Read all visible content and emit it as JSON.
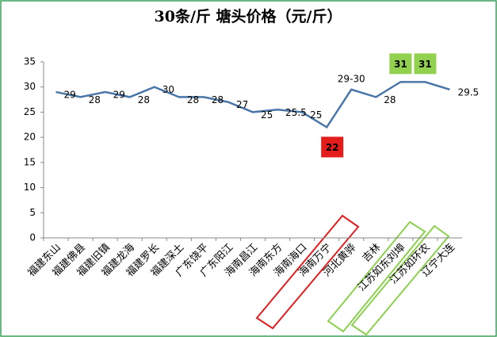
{
  "chart_data": {
    "type": "line",
    "title": "30条/斤     塘头价格（元/斤）",
    "categories": [
      "福建东山",
      "福建佛县",
      "福建旧镇",
      "福建龙海",
      "福建罗长",
      "福建深土",
      "广东饶平",
      "广东阳江",
      "海南昌江",
      "海南东方",
      "海南海口",
      "海南万宁",
      "河北黄骅",
      "吉林",
      "江苏如东刘埠",
      "江苏如环农",
      "辽宁大连"
    ],
    "series": [
      {
        "color": "#4a76a8",
        "values": [
          29,
          28,
          29,
          28,
          30,
          28,
          28,
          27,
          25,
          25.5,
          25,
          22,
          29.5,
          28,
          31,
          31,
          29.5
        ],
        "value_labels": [
          "29",
          "28",
          "29",
          "28",
          "30",
          "28",
          "28",
          "27",
          "25",
          "25.5",
          "25",
          "22",
          "29-30",
          "28",
          "31",
          "31",
          "29.5"
        ]
      }
    ],
    "ylim": [
      0,
      35
    ],
    "yticks": [
      0,
      5,
      10,
      15,
      20,
      25,
      30,
      35
    ],
    "grid": false
  }
}
